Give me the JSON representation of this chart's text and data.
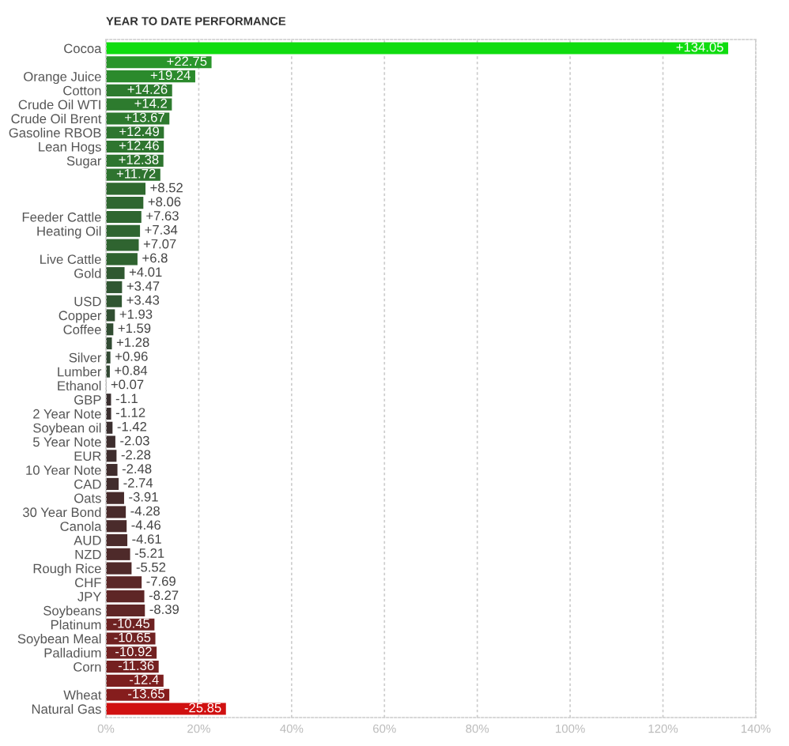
{
  "chart_data": {
    "type": "bar",
    "orientation": "horizontal",
    "title": "YEAR TO DATE PERFORMANCE",
    "categories": [
      "Cocoa",
      null,
      "Orange Juice",
      "Cotton",
      "Crude Oil WTI",
      "Crude Oil Brent",
      "Gasoline RBOB",
      "Lean Hogs",
      "Sugar",
      null,
      null,
      null,
      "Feeder Cattle",
      "Heating Oil",
      null,
      "Live Cattle",
      "Gold",
      null,
      "USD",
      "Copper",
      "Coffee",
      null,
      "Silver",
      "Lumber",
      "Ethanol",
      "GBP",
      "2 Year Note",
      "Soybean oil",
      "5 Year Note",
      "EUR",
      "10 Year Note",
      "CAD",
      "Oats",
      "30 Year Bond",
      "Canola",
      "AUD",
      "NZD",
      "Rough Rice",
      "CHF",
      "JPY",
      "Soybeans",
      "Platinum",
      "Soybean Meal",
      "Palladium",
      "Corn",
      null,
      "Wheat",
      "Natural Gas"
    ],
    "values": [
      134.05,
      22.75,
      19.24,
      14.26,
      14.2,
      13.67,
      12.49,
      12.46,
      12.38,
      11.72,
      8.52,
      8.06,
      7.63,
      7.34,
      7.07,
      6.8,
      4.01,
      3.47,
      3.43,
      1.93,
      1.59,
      1.28,
      0.96,
      0.84,
      0.07,
      -1.1,
      -1.12,
      -1.42,
      -2.03,
      -2.28,
      -2.48,
      -2.74,
      -3.91,
      -4.28,
      -4.46,
      -4.61,
      -5.21,
      -5.52,
      -7.69,
      -8.27,
      -8.39,
      -10.45,
      -10.65,
      -10.92,
      -11.36,
      -12.4,
      -13.65,
      -25.85
    ],
    "base": [
      0,
      0,
      0,
      0,
      0,
      0,
      0,
      0,
      0,
      0,
      0,
      0,
      0,
      0,
      0,
      0,
      0,
      0,
      0,
      0,
      0,
      0,
      0,
      0,
      0,
      1.1,
      1.12,
      1.42,
      2.03,
      2.28,
      2.48,
      2.74,
      3.91,
      4.28,
      4.46,
      4.61,
      5.21,
      5.52,
      7.69,
      8.27,
      8.39,
      10.45,
      10.65,
      10.92,
      11.36,
      12.4,
      13.65,
      25.85
    ],
    "value_labels": [
      "+134.05",
      "+22.75",
      "+19.24",
      "+14.26",
      "+14.2",
      "+13.67",
      "+12.49",
      "+12.46",
      "+12.38",
      "+11.72",
      "+8.52",
      "+8.06",
      "+7.63",
      "+7.34",
      "+7.07",
      "+6.8",
      "+4.01",
      "+3.47",
      "+3.43",
      "+1.93",
      "+1.59",
      "+1.28",
      "+0.96",
      "+0.84",
      "+0.07",
      "-1.1",
      "-1.12",
      "-1.42",
      "-2.03",
      "-2.28",
      "-2.48",
      "-2.74",
      "-3.91",
      "-4.28",
      "-4.46",
      "-4.61",
      "-5.21",
      "-5.52",
      "-7.69",
      "-8.27",
      "-8.39",
      "-10.45",
      "-10.65",
      "-10.92",
      "-11.36",
      "-12.4",
      "-13.65",
      "-25.85"
    ],
    "colors": [
      "#0fdc0f",
      "#2a952b",
      "#2b8a2c",
      "#2d7b2e",
      "#2d7b2e",
      "#2d792e",
      "#2e752f",
      "#2e752f",
      "#2e752f",
      "#2e732f",
      "#2f692f",
      "#2f6730",
      "#2f6630",
      "#2f6530",
      "#2f6430",
      "#2f6330",
      "#305831",
      "#305632",
      "#305632",
      "#314f32",
      "#314d32",
      "#324b33",
      "#324933",
      "#324833",
      "#333433",
      "#3a2f2f",
      "#3a2f2f",
      "#3b2f2f",
      "#3e2e2e",
      "#3f2e2e",
      "#402d2d",
      "#412d2d",
      "#472c2c",
      "#492b2b",
      "#4a2b2b",
      "#4b2b2b",
      "#4e2a2a",
      "#502a2a",
      "#5b2727",
      "#5e2626",
      "#5f2626",
      "#6e2222",
      "#702222",
      "#722121",
      "#752020",
      "#7c1f1f",
      "#851d1d",
      "#d01010"
    ],
    "xlim": [
      0,
      140
    ],
    "xticks": [
      {
        "value": 0,
        "label": "0%"
      },
      {
        "value": 20,
        "label": "20%"
      },
      {
        "value": 40,
        "label": "40%"
      },
      {
        "value": 60,
        "label": "60%"
      },
      {
        "value": 80,
        "label": "80%"
      },
      {
        "value": 100,
        "label": "100%"
      },
      {
        "value": 120,
        "label": "120%"
      },
      {
        "value": 140,
        "label": "140%"
      }
    ],
    "grid": "x"
  }
}
